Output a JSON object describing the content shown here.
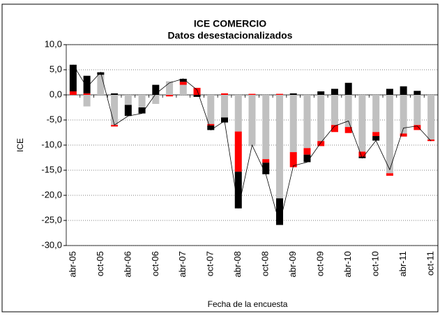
{
  "chart_data": {
    "type": "bar",
    "stacked": true,
    "title": "ICE COMERCIO",
    "subtitle": "Datos desestacionalizados",
    "y_label": "ICE",
    "x_label": "Fecha de la encuesta",
    "categories": [
      "abr-05",
      null,
      "oct-05",
      null,
      "abr-06",
      null,
      "oct-06",
      null,
      "abr-07",
      null,
      "oct-07",
      null,
      "abr-08",
      null,
      "oct-08",
      null,
      "abr-09",
      null,
      "oct-09",
      null,
      "abr-10",
      null,
      "oct-10",
      null,
      "abr-11",
      null,
      "oct-11"
    ],
    "series": [
      {
        "color": "#c0c0c0",
        "values": [
          0,
          -2.3,
          4.0,
          -6.0,
          -2.0,
          -2.5,
          -1.8,
          2.7,
          2.0,
          0,
          -5.8,
          -4.5,
          -7.3,
          -10.2,
          -12.8,
          -20.6,
          -11.4,
          -10.6,
          -9.2,
          -6.0,
          -6.4,
          -11.3,
          -7.4,
          -15.6,
          -7.7,
          -6.0,
          -8.9
        ]
      },
      {
        "color": "#ff0000",
        "values": [
          0.7,
          0.3,
          0,
          -0.3,
          0,
          0,
          0,
          -0.3,
          0.6,
          1.4,
          -0.3,
          0.3,
          -8.0,
          0.2,
          -0.7,
          0.2,
          -3.0,
          -1.3,
          -1.0,
          -1.4,
          -1.2,
          -1.0,
          -0.8,
          -0.5,
          -0.6,
          -1.0,
          -0.3
        ]
      },
      {
        "color": "#000000",
        "values": [
          5.3,
          3.5,
          0.5,
          0.3,
          -2.2,
          -1.2,
          2.0,
          0,
          0.6,
          -0.4,
          -0.9,
          -1.0,
          -7.3,
          0,
          -2.3,
          -5.3,
          0.3,
          -1.5,
          0.7,
          1.2,
          2.4,
          -0.3,
          -0.9,
          1.2,
          1.7,
          0.8,
          0
        ]
      },
      {
        "type": "line",
        "color": "#000000",
        "values": [
          6.0,
          1.5,
          4.5,
          -6.0,
          -4.2,
          -3.7,
          0.2,
          2.4,
          3.2,
          1.0,
          -7.0,
          -5.2,
          -22.6,
          -10.0,
          -15.8,
          -25.7,
          -14.1,
          -13.4,
          -9.5,
          -6.2,
          -5.2,
          -12.6,
          -9.1,
          -14.9,
          -6.6,
          -6.2,
          -9.2
        ]
      }
    ],
    "ylim": [
      -30,
      10
    ],
    "yticks": [
      {
        "value": -30,
        "label": "-30,0"
      },
      {
        "value": -25,
        "label": "-25,0"
      },
      {
        "value": -20,
        "label": "-20,0"
      },
      {
        "value": -15,
        "label": "-15,0"
      },
      {
        "value": -10,
        "label": "-10,0"
      },
      {
        "value": -5,
        "label": "-5,0"
      },
      {
        "value": 0,
        "label": "0,0"
      },
      {
        "value": 5,
        "label": "5,0"
      },
      {
        "value": 10,
        "label": "10,0"
      }
    ],
    "grid": true
  }
}
